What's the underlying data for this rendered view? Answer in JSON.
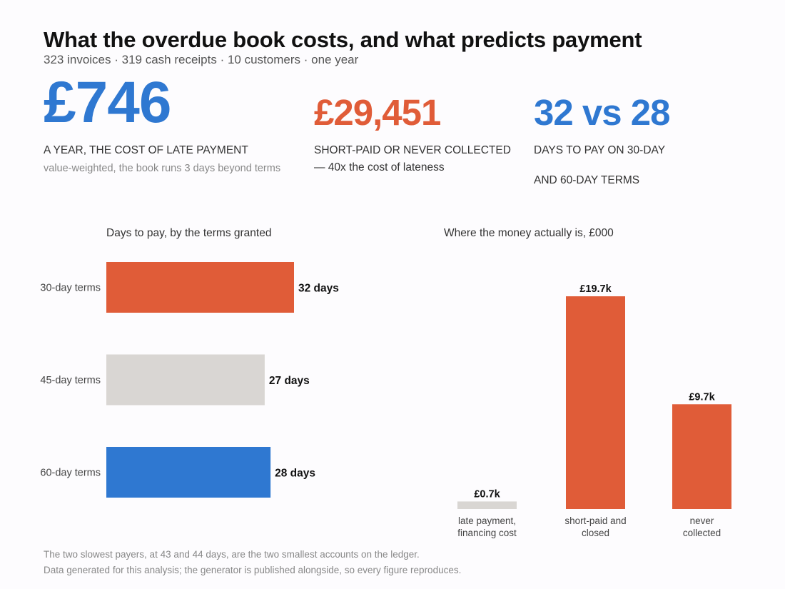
{
  "header": {
    "title": "What the overdue book costs, and what predicts payment",
    "subtitle": "323 invoices  ·  319 cash receipts  ·  10 customers  ·  one year"
  },
  "kpis": [
    {
      "value": "£746",
      "label": "A YEAR, THE COST OF LATE PAYMENT",
      "note": "value-weighted, the book runs 3 days beyond terms",
      "color": "#2f78d1"
    },
    {
      "value": "£29,451",
      "label": "SHORT-PAID OR NEVER COLLECTED",
      "note": "— 40x the cost of lateness",
      "color": "#e05c38"
    },
    {
      "value": "32 vs 28",
      "label": "DAYS TO PAY ON 30-DAY",
      "note": "AND 60-DAY TERMS",
      "color": "#2f78d1"
    }
  ],
  "chart_data": [
    {
      "type": "bar",
      "orientation": "horizontal",
      "title": "Days to pay, by the terms granted",
      "categories": [
        "30-day terms",
        "45-day terms",
        "60-day terms"
      ],
      "values": [
        32,
        27,
        28
      ],
      "data_labels": [
        "32 days",
        "27 days",
        "28 days"
      ],
      "colors": [
        "#e05c38",
        "#d9d6d3",
        "#2f78d1"
      ],
      "xlim": [
        0,
        32
      ]
    },
    {
      "type": "bar",
      "orientation": "vertical",
      "title": "Where the money actually is, £000",
      "categories": [
        "late payment, financing cost",
        "short-paid and closed",
        "never collected"
      ],
      "category_lines": [
        [
          "late payment,",
          "financing cost"
        ],
        [
          "short-paid and",
          "closed"
        ],
        [
          "never",
          "collected"
        ]
      ],
      "values": [
        0.7,
        19.7,
        9.7
      ],
      "data_labels": [
        "£0.7k",
        "£19.7k",
        "£9.7k"
      ],
      "colors": [
        "#d9d6d3",
        "#e05c38",
        "#e05c38"
      ],
      "ylim": [
        0,
        19.7
      ]
    }
  ],
  "footnotes": [
    "The two slowest payers, at 43 and 44 days, are the two smallest accounts on the ledger.",
    "Data generated for this analysis; the generator is published alongside, so every figure reproduces."
  ]
}
